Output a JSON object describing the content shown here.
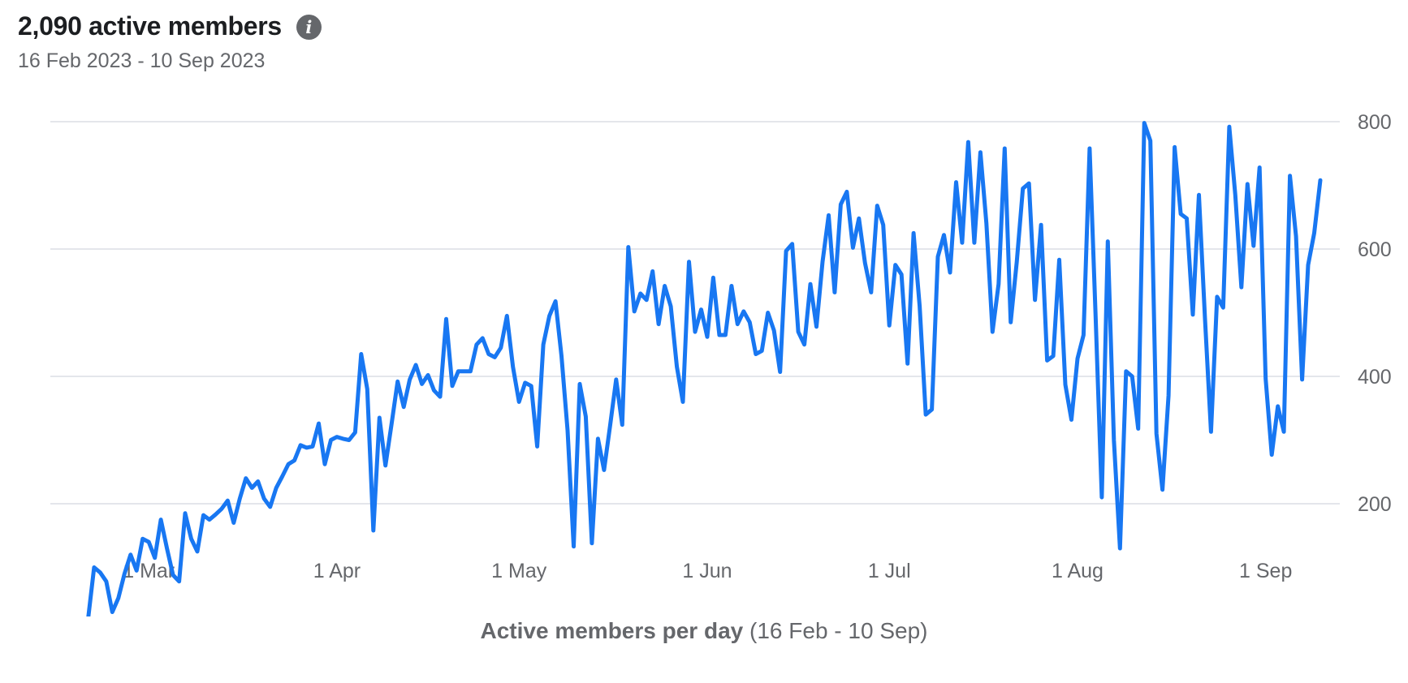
{
  "header": {
    "title": "2,090 active members",
    "info_icon": "info-icon",
    "subtitle": "16 Feb 2023 - 10 Sep 2023"
  },
  "caption": {
    "bold": "Active members per day",
    "rest": " (16 Feb - 10 Sep)"
  },
  "colors": {
    "line": "#1877f2",
    "grid": "#e4e6eb",
    "text": "#65676b"
  },
  "chart_data": {
    "type": "line",
    "title": "2,090 active members",
    "subtitle": "16 Feb 2023 - 10 Sep 2023",
    "xlabel": "Active members per day (16 Feb - 10 Sep)",
    "ylabel": "",
    "x_range": [
      "2023-02-16",
      "2023-09-10"
    ],
    "ylim": [
      0,
      800
    ],
    "y_axis_position": "right",
    "y_ticks": [
      200,
      400,
      600,
      800
    ],
    "grid": true,
    "x_ticks": [
      {
        "date": "2023-03-01",
        "label": "1 Mar"
      },
      {
        "date": "2023-04-01",
        "label": "1 Apr"
      },
      {
        "date": "2023-05-01",
        "label": "1 May"
      },
      {
        "date": "2023-06-01",
        "label": "1 Jun"
      },
      {
        "date": "2023-07-01",
        "label": "1 Jul"
      },
      {
        "date": "2023-08-01",
        "label": "1 Aug"
      },
      {
        "date": "2023-09-01",
        "label": "1 Sep"
      }
    ],
    "series": [
      {
        "values": [
          15,
          15,
          18,
          18,
          100,
          92,
          78,
          30,
          52,
          90,
          120,
          95,
          145,
          140,
          115,
          175,
          130,
          88,
          78,
          185,
          145,
          125,
          182,
          175,
          183,
          192,
          205,
          170,
          208,
          240,
          225,
          235,
          208,
          195,
          225,
          243,
          262,
          268,
          292,
          288,
          290,
          326,
          262,
          300,
          305,
          302,
          300,
          312,
          435,
          380,
          158,
          335,
          260,
          325,
          392,
          352,
          395,
          418,
          388,
          402,
          378,
          368,
          490,
          385,
          408,
          408,
          408,
          450,
          460,
          435,
          430,
          445,
          495,
          415,
          360,
          390,
          385,
          290,
          450,
          495,
          518,
          432,
          315,
          133,
          388,
          337,
          138,
          302,
          253,
          322,
          395,
          324,
          603,
          502,
          530,
          520,
          565,
          482,
          542,
          510,
          415,
          360,
          580,
          470,
          505,
          462,
          555,
          465,
          465,
          542,
          482,
          502,
          485,
          435,
          440,
          500,
          472,
          407,
          597,
          608,
          470,
          450,
          545,
          478,
          580,
          653,
          532,
          670,
          690,
          602,
          648,
          578,
          532,
          668,
          638,
          480,
          575,
          560,
          420,
          625,
          510,
          340,
          348,
          588,
          622,
          563,
          705,
          610,
          768,
          610,
          752,
          640,
          470,
          545,
          758,
          485,
          580,
          695,
          703,
          520,
          638,
          425,
          432,
          583,
          387,
          332,
          428,
          465,
          758,
          490,
          210,
          612,
          300,
          130,
          408,
          400,
          318,
          798,
          770,
          310,
          222,
          370,
          760,
          655,
          648,
          497,
          685,
          490,
          313,
          525,
          508,
          792,
          685,
          540,
          702,
          605,
          728,
          396,
          277,
          353,
          313,
          715,
          620,
          395,
          575,
          625,
          708
        ]
      }
    ]
  }
}
